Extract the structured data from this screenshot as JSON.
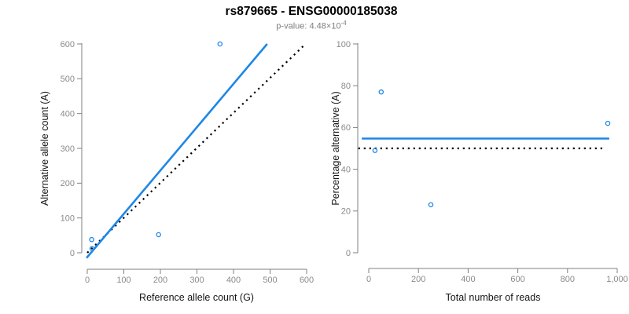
{
  "header": {
    "title": "rs879665 - ENSG00000185038",
    "p_value_prefix": "p-value: 4.48×10",
    "p_value_exponent": "-4"
  },
  "colors": {
    "point_blue": "#1e87e6",
    "fit_line_blue": "#1e87e6",
    "reference_line_black": "#000000",
    "axis_gray": "#808080",
    "tick_label_gray": "#8a8a8a",
    "subtitle_gray": "#7d7d7d"
  },
  "chart_data": [
    {
      "id": "allele-counts-scatter",
      "type": "scatter",
      "xlabel": "Reference allele count (G)",
      "ylabel": "Alternative allele count (A)",
      "xlim": [
        0,
        600
      ],
      "ylim": [
        0,
        600
      ],
      "xticks": [
        0,
        100,
        200,
        300,
        400,
        500,
        600
      ],
      "xtick_labels": [
        "0",
        "100",
        "200",
        "300",
        "400",
        "500",
        "600"
      ],
      "yticks": [
        0,
        100,
        200,
        300,
        400,
        500,
        600
      ],
      "ytick_labels": [
        "0",
        "100",
        "200",
        "300",
        "400",
        "500",
        "600"
      ],
      "grid": false,
      "legend": null,
      "points": [
        {
          "x": 12,
          "y": 38
        },
        {
          "x": 13,
          "y": 12
        },
        {
          "x": 195,
          "y": 52
        },
        {
          "x": 363,
          "y": 600
        }
      ],
      "lines": [
        {
          "name": "identity-line",
          "style": "dotted",
          "color": "black",
          "x1": 0,
          "y1": 0,
          "x2": 597,
          "y2": 600
        },
        {
          "name": "fitted-proportion-line",
          "style": "solid",
          "color": "blue",
          "x1": -2,
          "y1": -15,
          "x2": 492,
          "y2": 600
        }
      ]
    },
    {
      "id": "percentage-vs-reads-scatter",
      "type": "scatter",
      "xlabel": "Total number of reads",
      "ylabel": "Percentage alternative (A)",
      "xlim": [
        0,
        1000
      ],
      "ylim": [
        0,
        100
      ],
      "xticks": [
        0,
        200,
        400,
        600,
        800,
        1000
      ],
      "xtick_labels": [
        "0",
        "200",
        "400",
        "600",
        "800",
        "1,000"
      ],
      "yticks": [
        0,
        20,
        40,
        60,
        80,
        100
      ],
      "ytick_labels": [
        "0",
        "20",
        "40",
        "60",
        "80",
        "100"
      ],
      "grid": false,
      "legend": null,
      "points": [
        {
          "x": 50,
          "y": 77
        },
        {
          "x": 25,
          "y": 49
        },
        {
          "x": 250,
          "y": 23
        },
        {
          "x": 962,
          "y": 62
        }
      ],
      "lines": [
        {
          "name": "expected-50-percent-line",
          "style": "dotted",
          "color": "black",
          "x1": -42,
          "y1": 50,
          "x2": 947,
          "y2": 50
        },
        {
          "name": "mean-percentage-line",
          "style": "solid",
          "color": "blue",
          "x1": -28,
          "y1": 54.7,
          "x2": 968,
          "y2": 54.7
        }
      ]
    }
  ]
}
